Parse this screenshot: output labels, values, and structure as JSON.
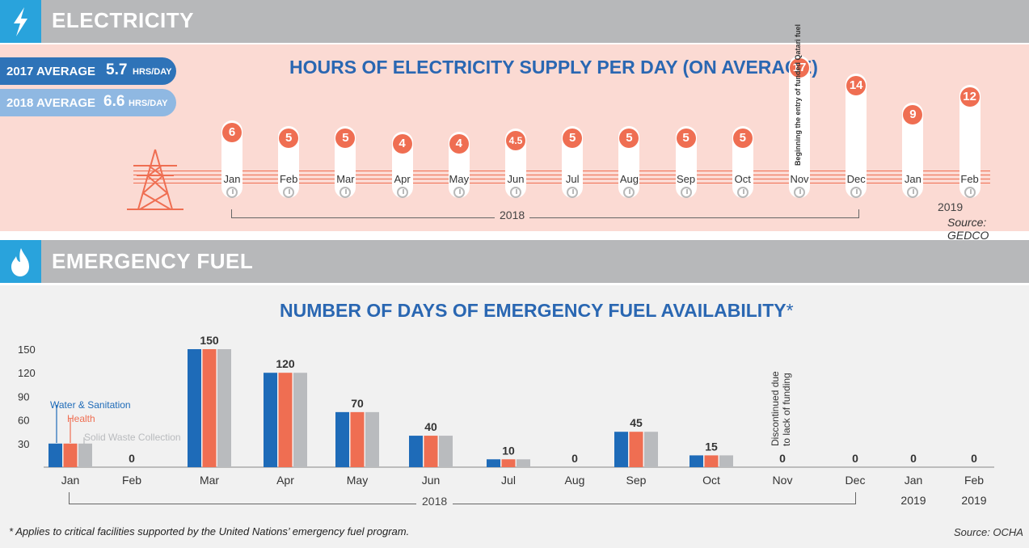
{
  "colors": {
    "header_bg": "#b7b8ba",
    "icon_bg": "#29a3dc",
    "accent_orange": "#ef6e52",
    "title_blue": "#2a67b2",
    "water": "#1e6bb8",
    "health": "#ef6e52",
    "waste": "#b9bbbe"
  },
  "electricity": {
    "header": "ELECTRICITY",
    "icon": "lightning-icon",
    "avg_2017": {
      "label": "2017 AVERAGE",
      "value": "5.7",
      "unit": "HRS/DAY"
    },
    "avg_2018": {
      "label": "2018 AVERAGE",
      "value": "6.6",
      "unit": "HRS/DAY"
    },
    "title": "HOURS OF ELECTRICITY SUPPLY PER DAY (ON AVERAGE)",
    "note": "Beginning the entry of funded Qatari fuel",
    "year_2018": "2018",
    "year_2019": "2019",
    "source": "Source: GEDCO"
  },
  "fuel": {
    "header": "EMERGENCY FUEL",
    "icon": "flame-icon",
    "title": "NUMBER OF DAYS OF EMERGENCY FUEL AVAILABILITY",
    "title_mark": "*",
    "discontinued": "Discontinued due\nto lack of funding",
    "year_2018": "2018",
    "footnote": "* Applies to critical facilities supported by the United Nations’ emergency fuel program.",
    "source": "Source: OCHA"
  },
  "chart_data": [
    {
      "type": "bar",
      "title": "HOURS OF ELECTRICITY SUPPLY PER DAY (ON AVERAGE)",
      "categories": [
        "Jan",
        "Feb",
        "Mar",
        "Apr",
        "May",
        "Jun",
        "Jul",
        "Aug",
        "Sep",
        "Oct",
        "Nov",
        "Dec",
        "Jan",
        "Feb"
      ],
      "year_labels": [
        "2018",
        "2018",
        "2018",
        "2018",
        "2018",
        "2018",
        "2018",
        "2018",
        "2018",
        "2018",
        "2018",
        "2018",
        "2019",
        "2019"
      ],
      "values": [
        6,
        5,
        5,
        4,
        4,
        4.5,
        5,
        5,
        5,
        5,
        17,
        14,
        9,
        12
      ],
      "value_labels": [
        "6",
        "5",
        "5",
        "4",
        "4",
        "4.5",
        "5",
        "5",
        "5",
        "5",
        "17",
        "14",
        "9",
        "12"
      ]
    },
    {
      "type": "bar",
      "title": "NUMBER OF DAYS OF EMERGENCY FUEL AVAILABILITY*",
      "categories": [
        "Jan",
        "Feb",
        "Mar",
        "Apr",
        "May",
        "Jun",
        "Jul",
        "Aug",
        "Sep",
        "Oct",
        "Nov",
        "Dec",
        "Jan",
        "Feb"
      ],
      "year_labels": [
        "",
        "",
        "",
        "",
        "",
        "",
        "",
        "",
        "",
        "",
        "",
        "",
        "2019",
        "2019"
      ],
      "series": [
        {
          "name": "Water & Sanitation",
          "values": [
            30,
            0,
            150,
            120,
            70,
            40,
            10,
            0,
            45,
            15,
            0,
            0,
            0,
            0
          ]
        },
        {
          "name": "Health",
          "values": [
            30,
            0,
            150,
            120,
            70,
            40,
            10,
            0,
            45,
            15,
            0,
            0,
            0,
            0
          ]
        },
        {
          "name": "Solid Waste Collection",
          "values": [
            30,
            0,
            150,
            120,
            70,
            40,
            10,
            0,
            45,
            15,
            0,
            0,
            0,
            0
          ]
        }
      ],
      "value_labels": [
        "",
        "0",
        "150",
        "120",
        "70",
        "40",
        "10",
        "0",
        "45",
        "15",
        "0",
        "0",
        "0",
        "0"
      ],
      "yticks": [
        30,
        60,
        90,
        120,
        150
      ],
      "ylim": [
        0,
        150
      ]
    }
  ]
}
